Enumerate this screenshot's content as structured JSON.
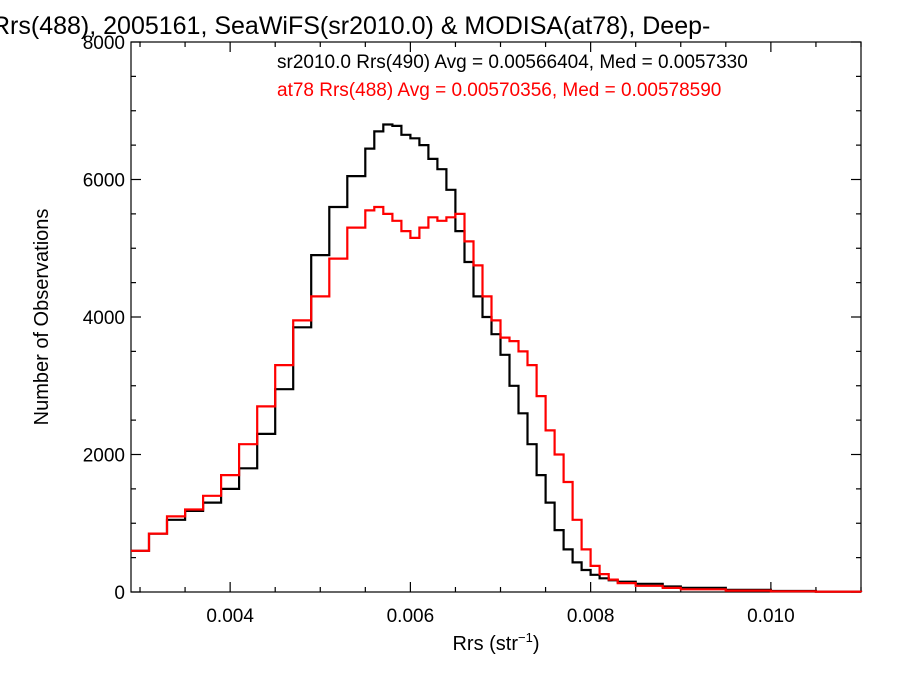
{
  "chart_data": {
    "type": "line",
    "style": "step",
    "title": "Rrs(488), 2005161, SeaWiFS(sr2010.0) & MODISA(at78), Deep-",
    "xlabel": "Rrs (str",
    "xlabel_sup": "−1",
    "xlabel_close": ")",
    "ylabel": "Number of Observations",
    "xlim": [
      0.0029,
      0.011
    ],
    "ylim": [
      0,
      8000
    ],
    "xticks": [
      {
        "value": 0.004,
        "label": "0.004"
      },
      {
        "value": 0.006,
        "label": "0.006"
      },
      {
        "value": 0.008,
        "label": "0.008"
      },
      {
        "value": 0.01,
        "label": "0.010"
      }
    ],
    "yticks": [
      {
        "value": 0,
        "label": "0"
      },
      {
        "value": 2000,
        "label": "2000"
      },
      {
        "value": 4000,
        "label": "4000"
      },
      {
        "value": 6000,
        "label": "6000"
      },
      {
        "value": 8000,
        "label": "8000"
      }
    ],
    "grid": false,
    "legend_position": "top-right",
    "series": [
      {
        "name": "sr2010.0 Rrs(490) Avg = 0.00566404, Med = 0.0057330",
        "color": "#000000",
        "x": [
          0.0029,
          0.0031,
          0.0033,
          0.0035,
          0.0037,
          0.0039,
          0.0041,
          0.0043,
          0.0045,
          0.0047,
          0.0049,
          0.0051,
          0.0053,
          0.0055,
          0.0056,
          0.0057,
          0.0058,
          0.0059,
          0.006,
          0.0061,
          0.0062,
          0.0063,
          0.0064,
          0.0065,
          0.0066,
          0.0067,
          0.0068,
          0.0069,
          0.007,
          0.0071,
          0.0072,
          0.0073,
          0.0074,
          0.0075,
          0.0076,
          0.0077,
          0.0078,
          0.0079,
          0.008,
          0.0081,
          0.0082,
          0.0083,
          0.0085,
          0.0088,
          0.009,
          0.0095,
          0.01,
          0.0105,
          0.011
        ],
        "y": [
          600,
          850,
          1050,
          1180,
          1300,
          1500,
          1800,
          2300,
          2950,
          3850,
          4900,
          5600,
          6050,
          6450,
          6700,
          6800,
          6780,
          6650,
          6600,
          6500,
          6300,
          6150,
          5850,
          5250,
          4800,
          4300,
          4000,
          3750,
          3450,
          3000,
          2600,
          2150,
          1700,
          1300,
          900,
          620,
          430,
          320,
          250,
          200,
          170,
          150,
          120,
          80,
          60,
          30,
          15,
          5,
          0
        ]
      },
      {
        "name": "at78 Rrs(488) Avg = 0.00570356, Med = 0.00578590",
        "color": "#ff0000",
        "x": [
          0.0029,
          0.0031,
          0.0033,
          0.0035,
          0.0037,
          0.0039,
          0.0041,
          0.0043,
          0.0045,
          0.0047,
          0.0049,
          0.0051,
          0.0053,
          0.0055,
          0.0056,
          0.0057,
          0.0058,
          0.0059,
          0.006,
          0.0061,
          0.0062,
          0.0063,
          0.0064,
          0.0065,
          0.0066,
          0.0067,
          0.0068,
          0.0069,
          0.007,
          0.0071,
          0.0072,
          0.0073,
          0.0074,
          0.0075,
          0.0076,
          0.0077,
          0.0078,
          0.0079,
          0.008,
          0.0081,
          0.0082,
          0.0083,
          0.0085,
          0.0088,
          0.009,
          0.0095,
          0.01,
          0.0105,
          0.011
        ],
        "y": [
          600,
          850,
          1100,
          1200,
          1400,
          1700,
          2150,
          2700,
          3300,
          3950,
          4300,
          4850,
          5300,
          5550,
          5600,
          5500,
          5400,
          5250,
          5150,
          5300,
          5450,
          5400,
          5450,
          5500,
          5100,
          4750,
          4300,
          3950,
          3700,
          3650,
          3500,
          3300,
          2850,
          2350,
          2000,
          1600,
          1050,
          620,
          380,
          260,
          180,
          130,
          90,
          60,
          40,
          20,
          10,
          5,
          0
        ]
      }
    ]
  }
}
